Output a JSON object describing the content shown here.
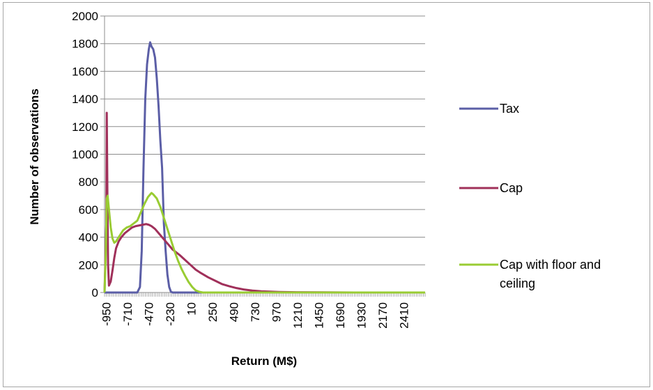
{
  "chart_data": {
    "type": "line",
    "xlabel": "Return (M$)",
    "ylabel": "Number of observations",
    "xlim": [
      -970,
      2650
    ],
    "ylim": [
      0,
      2000
    ],
    "grid": true,
    "legend_position": "right",
    "y_ticks": [
      "0",
      "200",
      "400",
      "600",
      "800",
      "1000",
      "1200",
      "1400",
      "1600",
      "1800",
      "2000"
    ],
    "x_tick_labels": [
      "-950",
      "-710",
      "-470",
      "-230",
      "10",
      "250",
      "490",
      "730",
      "970",
      "1210",
      "1450",
      "1690",
      "1930",
      "2170",
      "2410"
    ],
    "x_tick_values": [
      -950,
      -710,
      -470,
      -230,
      10,
      250,
      490,
      730,
      970,
      1210,
      1450,
      1690,
      1930,
      2170,
      2410
    ],
    "legend_text": {
      "tax": "Tax",
      "cap": "Cap",
      "floor_line1": "Cap with floor and",
      "floor_line2": "ceiling"
    },
    "series": [
      {
        "name": "Tax",
        "color": "#5b5ea6",
        "points": [
          [
            -970,
            0
          ],
          [
            -600,
            0
          ],
          [
            -570,
            40
          ],
          [
            -550,
            300
          ],
          [
            -530,
            900
          ],
          [
            -510,
            1400
          ],
          [
            -490,
            1650
          ],
          [
            -470,
            1760
          ],
          [
            -455,
            1810
          ],
          [
            -440,
            1780
          ],
          [
            -420,
            1760
          ],
          [
            -400,
            1700
          ],
          [
            -380,
            1550
          ],
          [
            -360,
            1350
          ],
          [
            -340,
            1100
          ],
          [
            -320,
            900
          ],
          [
            -300,
            500
          ],
          [
            -280,
            300
          ],
          [
            -260,
            130
          ],
          [
            -240,
            40
          ],
          [
            -220,
            5
          ],
          [
            -200,
            0
          ],
          [
            2650,
            0
          ]
        ]
      },
      {
        "name": "Cap",
        "color": "#a0305a",
        "points": [
          [
            -970,
            0
          ],
          [
            -950,
            500
          ],
          [
            -945,
            1300
          ],
          [
            -940,
            900
          ],
          [
            -935,
            500
          ],
          [
            -930,
            200
          ],
          [
            -920,
            50
          ],
          [
            -900,
            80
          ],
          [
            -880,
            160
          ],
          [
            -860,
            250
          ],
          [
            -840,
            320
          ],
          [
            -810,
            370
          ],
          [
            -780,
            400
          ],
          [
            -740,
            430
          ],
          [
            -700,
            450
          ],
          [
            -660,
            470
          ],
          [
            -620,
            480
          ],
          [
            -580,
            485
          ],
          [
            -540,
            490
          ],
          [
            -500,
            495
          ],
          [
            -470,
            490
          ],
          [
            -440,
            480
          ],
          [
            -400,
            460
          ],
          [
            -360,
            430
          ],
          [
            -320,
            400
          ],
          [
            -280,
            370
          ],
          [
            -240,
            340
          ],
          [
            -200,
            310
          ],
          [
            -160,
            290
          ],
          [
            -120,
            270
          ],
          [
            -60,
            235
          ],
          [
            0,
            200
          ],
          [
            60,
            165
          ],
          [
            120,
            140
          ],
          [
            200,
            110
          ],
          [
            280,
            85
          ],
          [
            360,
            60
          ],
          [
            440,
            45
          ],
          [
            520,
            32
          ],
          [
            600,
            22
          ],
          [
            700,
            14
          ],
          [
            800,
            9
          ],
          [
            900,
            6
          ],
          [
            1000,
            4
          ],
          [
            1200,
            2
          ],
          [
            1500,
            1
          ],
          [
            2000,
            0
          ],
          [
            2650,
            0
          ]
        ]
      },
      {
        "name": "Cap with floor and ceiling",
        "color": "#99cc33",
        "points": [
          [
            -970,
            0
          ],
          [
            -955,
            300
          ],
          [
            -945,
            680
          ],
          [
            -935,
            700
          ],
          [
            -920,
            600
          ],
          [
            -900,
            470
          ],
          [
            -880,
            390
          ],
          [
            -860,
            360
          ],
          [
            -840,
            370
          ],
          [
            -800,
            410
          ],
          [
            -760,
            450
          ],
          [
            -720,
            470
          ],
          [
            -680,
            480
          ],
          [
            -640,
            500
          ],
          [
            -600,
            520
          ],
          [
            -560,
            580
          ],
          [
            -520,
            640
          ],
          [
            -480,
            690
          ],
          [
            -440,
            720
          ],
          [
            -420,
            710
          ],
          [
            -380,
            680
          ],
          [
            -340,
            620
          ],
          [
            -300,
            540
          ],
          [
            -260,
            460
          ],
          [
            -220,
            380
          ],
          [
            -180,
            300
          ],
          [
            -140,
            230
          ],
          [
            -100,
            170
          ],
          [
            -60,
            120
          ],
          [
            -20,
            75
          ],
          [
            20,
            40
          ],
          [
            60,
            15
          ],
          [
            100,
            5
          ],
          [
            140,
            0
          ],
          [
            2650,
            0
          ]
        ]
      }
    ]
  }
}
